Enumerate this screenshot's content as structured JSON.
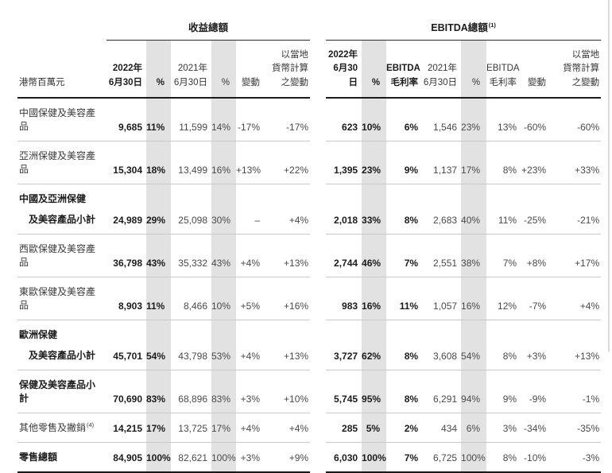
{
  "unit_label": "港幣百萬元",
  "sections": {
    "revenue": {
      "title": "收益總額"
    },
    "ebitda": {
      "title": "EBITDA總額",
      "footnote": "(1)"
    }
  },
  "header": {
    "revenue_cols": [
      "2022年\n6月30日",
      "%",
      "2021年\n6月30日",
      "%",
      "變動",
      "以當地\n貨幣計算\n之變動"
    ],
    "ebitda_cols": [
      "2022年\n6月30日",
      "%",
      "EBITDA\n毛利率",
      "2021年\n6月30日",
      "%",
      "EBITDA\n毛利率",
      "變動",
      "以當地\n貨幣計算\n之變動"
    ]
  },
  "rows": [
    {
      "label_lines": [
        "中國保健及美容產品"
      ],
      "bold": false,
      "footnote": "",
      "revenue": [
        "9,685",
        "11%",
        "11,599",
        "14%",
        "-17%",
        "-17%"
      ],
      "ebitda": [
        "623",
        "10%",
        "6%",
        "1,546",
        "23%",
        "13%",
        "-60%",
        "-60%"
      ]
    },
    {
      "label_lines": [
        "亞洲保健及美容產品"
      ],
      "bold": false,
      "footnote": "",
      "revenue": [
        "15,304",
        "18%",
        "13,499",
        "16%",
        "+13%",
        "+22%"
      ],
      "ebitda": [
        "1,395",
        "23%",
        "9%",
        "1,137",
        "17%",
        "8%",
        "+23%",
        "+33%"
      ]
    },
    {
      "label_lines": [
        "中國及亞洲保健",
        "及美容產品小計"
      ],
      "bold": true,
      "footnote": "",
      "revenue": [
        "24,989",
        "29%",
        "25,098",
        "30%",
        "–",
        "+4%"
      ],
      "ebitda": [
        "2,018",
        "33%",
        "8%",
        "2,683",
        "40%",
        "11%",
        "-25%",
        "-21%"
      ]
    },
    {
      "label_lines": [
        "西歐保健及美容產品"
      ],
      "bold": false,
      "footnote": "",
      "revenue": [
        "36,798",
        "43%",
        "35,332",
        "43%",
        "+4%",
        "+13%"
      ],
      "ebitda": [
        "2,744",
        "46%",
        "7%",
        "2,551",
        "38%",
        "7%",
        "+8%",
        "+17%"
      ]
    },
    {
      "label_lines": [
        "東歐保健及美容產品"
      ],
      "bold": false,
      "footnote": "",
      "revenue": [
        "8,903",
        "11%",
        "8,466",
        "10%",
        "+5%",
        "+16%"
      ],
      "ebitda": [
        "983",
        "16%",
        "11%",
        "1,057",
        "16%",
        "12%",
        "-7%",
        "+4%"
      ]
    },
    {
      "label_lines": [
        "歐洲保健",
        "及美容產品小計"
      ],
      "bold": true,
      "footnote": "",
      "revenue": [
        "45,701",
        "54%",
        "43,798",
        "53%",
        "+4%",
        "+13%"
      ],
      "ebitda": [
        "3,727",
        "62%",
        "8%",
        "3,608",
        "54%",
        "8%",
        "+3%",
        "+13%"
      ]
    },
    {
      "label_lines": [
        "保健及美容產品小計"
      ],
      "bold": true,
      "footnote": "",
      "revenue": [
        "70,690",
        "83%",
        "68,896",
        "83%",
        "+3%",
        "+10%"
      ],
      "ebitda": [
        "5,745",
        "95%",
        "8%",
        "6,291",
        "94%",
        "9%",
        "-9%",
        "-1%"
      ]
    },
    {
      "label_lines": [
        "其他零售及撇銷"
      ],
      "bold": false,
      "footnote": "(4)",
      "revenue": [
        "14,215",
        "17%",
        "13,725",
        "17%",
        "+4%",
        "+4%"
      ],
      "ebitda": [
        "285",
        "5%",
        "2%",
        "434",
        "6%",
        "3%",
        "-34%",
        "-35%"
      ]
    },
    {
      "label_lines": [
        "零售總額"
      ],
      "bold": true,
      "footnote": "",
      "revenue": [
        "84,905",
        "100%",
        "82,621",
        "100%",
        "+3%",
        "+9%"
      ],
      "ebitda": [
        "6,030",
        "100%",
        "7%",
        "6,725",
        "100%",
        "8%",
        "-10%",
        "-3%"
      ]
    }
  ],
  "colors": {
    "stripe": "#e2e2e2",
    "text_primary": "#1b1b1b",
    "text_secondary": "#4a4a4a",
    "row_divider": "#c9c9c9",
    "heavy_rule": "#181818"
  }
}
